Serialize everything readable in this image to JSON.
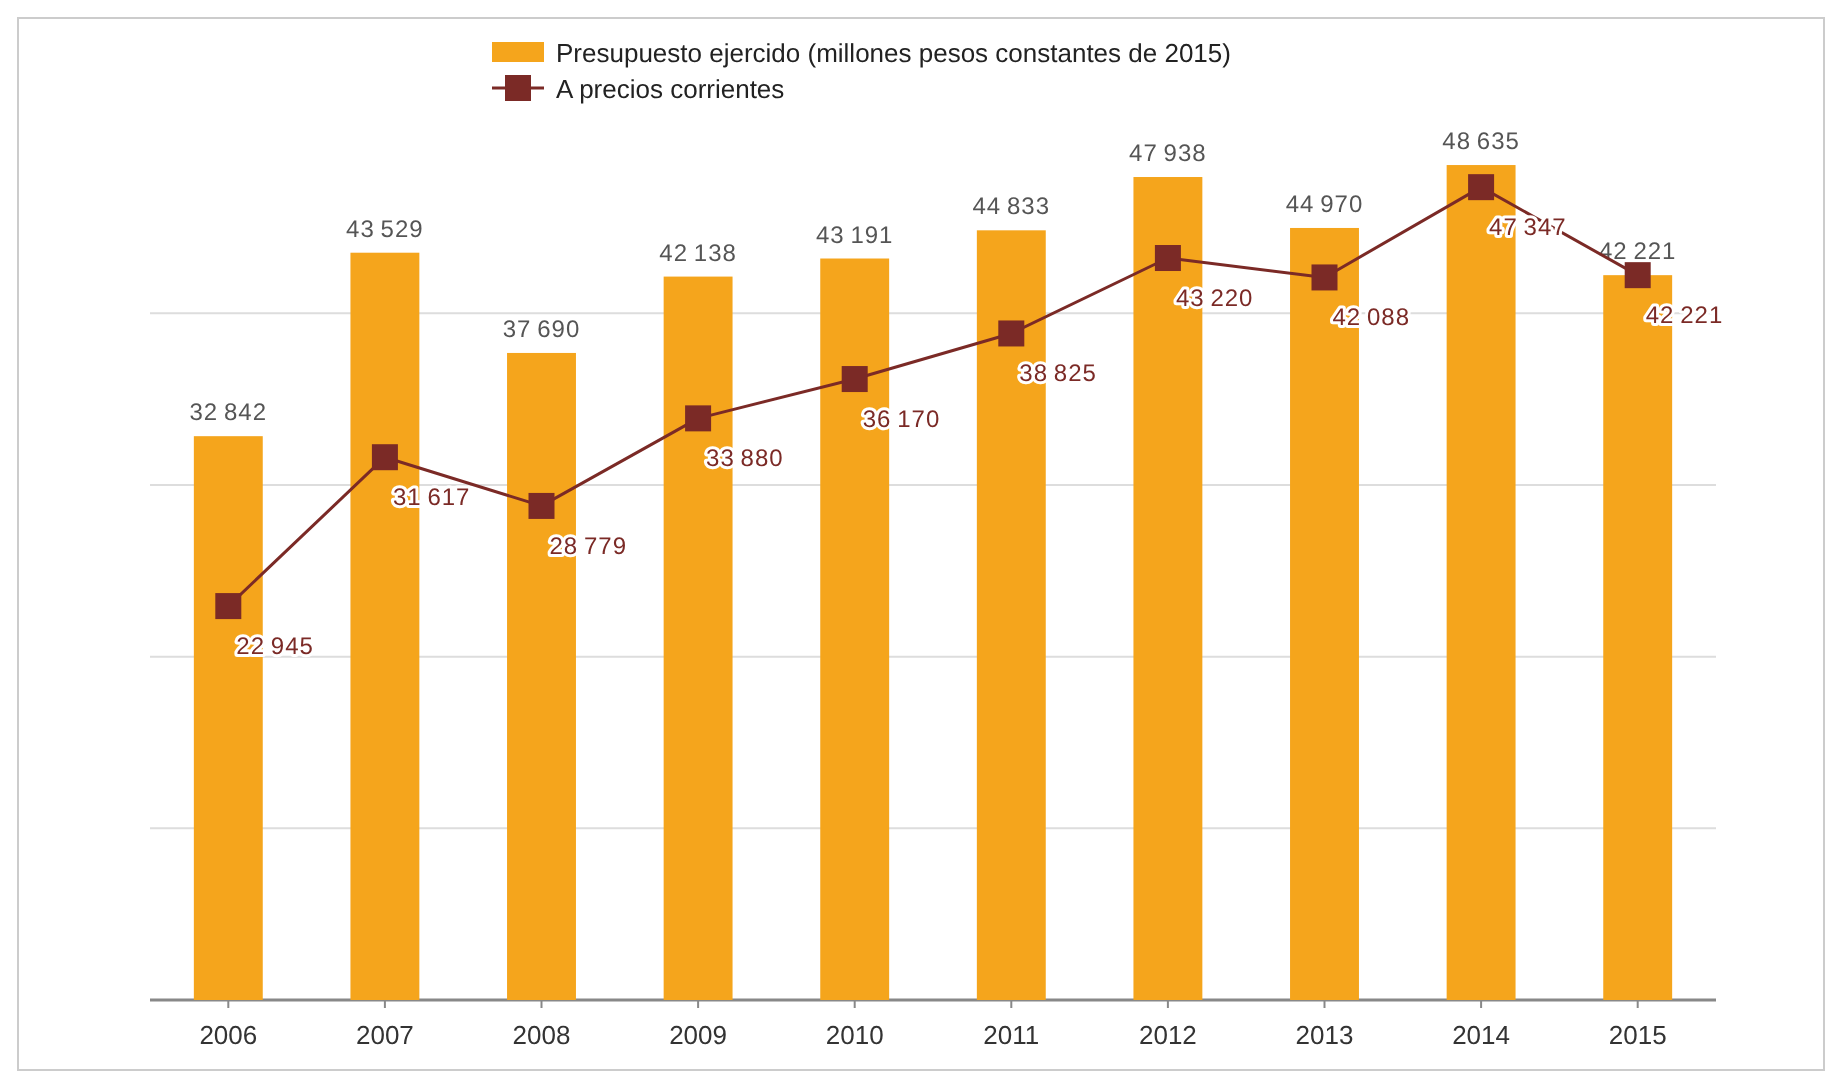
{
  "chart_data": {
    "type": "bar",
    "categories": [
      "2006",
      "2007",
      "2008",
      "2009",
      "2010",
      "2011",
      "2012",
      "2013",
      "2014",
      "2015"
    ],
    "series": [
      {
        "name": "Presupuesto ejercido (millones pesos constantes de 2015)",
        "color": "#f5a51c",
        "values": [
          32842,
          43529,
          37690,
          42138,
          43191,
          44833,
          47938,
          44970,
          48635,
          42221
        ]
      },
      {
        "name": "A precios corrientes",
        "type": "line",
        "color": "#7b2a26",
        "values": [
          22945,
          31617,
          28779,
          33880,
          36170,
          38825,
          43220,
          42088,
          47347,
          42221
        ]
      }
    ],
    "yticks": [
      {
        "value": 0,
        "label": null
      },
      {
        "value": 10000,
        "label": null
      },
      {
        "value": 20000,
        "label": null
      },
      {
        "value": 30000,
        "label": null
      },
      {
        "value": 40000,
        "label": null
      }
    ],
    "grid": "y",
    "legend": "top",
    "marker": "square",
    "line_style": "solid",
    "data_labels": true
  }
}
